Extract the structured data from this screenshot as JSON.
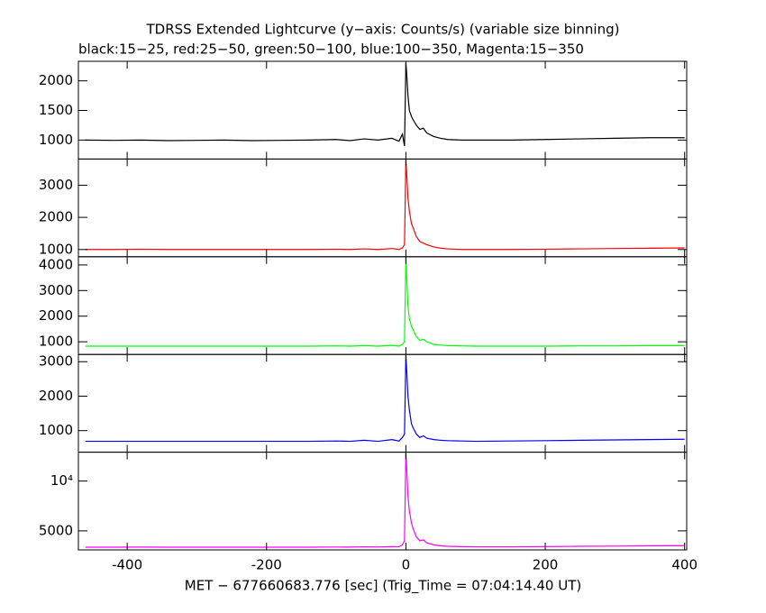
{
  "chart_data": [
    {
      "type": "line",
      "title": "TDRSS Extended Lightcurve (y−axis: Counts/s) (variable size binning)",
      "subtitle": "black:15−25, red:25−50, green:50−100, blue:100−350, Magenta:15−350",
      "color": "#000000",
      "xlim": [
        -470,
        403
      ],
      "ylim": [
        680,
        2330
      ],
      "yticks": [
        1000,
        1500,
        2000
      ],
      "x": [
        -460,
        -420,
        -380,
        -340,
        -300,
        -260,
        -220,
        -180,
        -140,
        -100,
        -80,
        -60,
        -40,
        -20,
        -10,
        -5,
        -2,
        0,
        1,
        2,
        3,
        5,
        8,
        10,
        15,
        20,
        25,
        30,
        40,
        50,
        60,
        80,
        100,
        150,
        200,
        250,
        300,
        350,
        400
      ],
      "values": [
        1000,
        995,
        1000,
        990,
        995,
        1000,
        990,
        995,
        1000,
        1010,
        990,
        1020,
        1000,
        1030,
        980,
        1100,
        900,
        2300,
        2150,
        1950,
        1750,
        1500,
        1400,
        1350,
        1250,
        1180,
        1200,
        1120,
        1060,
        1030,
        1010,
        1000,
        1000,
        1000,
        1010,
        1020,
        1030,
        1040,
        1040
      ]
    },
    {
      "type": "line",
      "color": "#ff0000",
      "xlim": [
        -470,
        403
      ],
      "ylim": [
        775,
        3815
      ],
      "yticks": [
        1000,
        2000,
        3000
      ],
      "x": [
        -460,
        -420,
        -380,
        -340,
        -300,
        -260,
        -220,
        -180,
        -140,
        -100,
        -80,
        -60,
        -40,
        -20,
        -10,
        -5,
        -2,
        0,
        1,
        2,
        3,
        5,
        8,
        10,
        15,
        20,
        25,
        30,
        40,
        50,
        60,
        80,
        100,
        150,
        200,
        250,
        300,
        350,
        400
      ],
      "values": [
        1000,
        1000,
        1010,
        1000,
        1000,
        1000,
        1000,
        1000,
        1000,
        1010,
        1000,
        1020,
        1000,
        1030,
        1000,
        1050,
        1150,
        3800,
        3400,
        3000,
        2600,
        2200,
        1800,
        1700,
        1400,
        1250,
        1200,
        1150,
        1080,
        1040,
        1020,
        1000,
        1000,
        1000,
        1010,
        1020,
        1030,
        1040,
        1050
      ]
    },
    {
      "type": "line",
      "color": "#00ff00",
      "xlim": [
        -470,
        403
      ],
      "ylim": [
        505,
        4320
      ],
      "yticks": [
        1000,
        2000,
        3000,
        4000
      ],
      "x": [
        -460,
        -420,
        -380,
        -340,
        -300,
        -260,
        -220,
        -180,
        -140,
        -100,
        -80,
        -60,
        -40,
        -20,
        -10,
        -5,
        -2,
        0,
        1,
        2,
        3,
        5,
        8,
        10,
        15,
        20,
        25,
        30,
        40,
        50,
        60,
        80,
        100,
        150,
        200,
        250,
        300,
        350,
        400
      ],
      "values": [
        830,
        830,
        830,
        830,
        830,
        830,
        830,
        830,
        830,
        840,
        830,
        850,
        830,
        860,
        830,
        900,
        1000,
        4300,
        3600,
        3000,
        2400,
        1900,
        1600,
        1500,
        1200,
        1050,
        1100,
        1000,
        900,
        870,
        850,
        840,
        830,
        830,
        830,
        840,
        840,
        850,
        850
      ]
    },
    {
      "type": "line",
      "color": "#0000ff",
      "xlim": [
        -470,
        403
      ],
      "ylim": [
        375,
        3210
      ],
      "yticks": [
        1000,
        2000,
        3000
      ],
      "x": [
        -460,
        -420,
        -380,
        -340,
        -300,
        -260,
        -220,
        -180,
        -140,
        -100,
        -80,
        -60,
        -40,
        -20,
        -10,
        -5,
        -2,
        0,
        1,
        2,
        3,
        5,
        8,
        10,
        15,
        20,
        25,
        30,
        40,
        50,
        60,
        80,
        100,
        150,
        200,
        250,
        300,
        350,
        400
      ],
      "values": [
        690,
        690,
        690,
        690,
        690,
        690,
        690,
        690,
        690,
        700,
        690,
        720,
        690,
        740,
        700,
        800,
        900,
        3200,
        2800,
        2400,
        2000,
        1600,
        1200,
        1100,
        900,
        800,
        850,
        780,
        740,
        720,
        710,
        700,
        690,
        700,
        710,
        720,
        730,
        740,
        750
      ]
    },
    {
      "type": "line",
      "color": "#ff00ff",
      "xlim": [
        -470,
        403
      ],
      "ylim": [
        3090,
        12900
      ],
      "yticks": [
        5000,
        {
          "value": 10000,
          "label": "10⁴"
        }
      ],
      "xticks": [
        -400,
        -200,
        0,
        200,
        400
      ],
      "x_label": "MET − 677660683.776 [sec] (Trig_Time = 07:04:14.40 UT)",
      "x": [
        -460,
        -420,
        -380,
        -340,
        -300,
        -260,
        -220,
        -180,
        -140,
        -100,
        -80,
        -60,
        -40,
        -20,
        -10,
        -5,
        -2,
        0,
        1,
        2,
        3,
        5,
        8,
        10,
        15,
        20,
        25,
        30,
        40,
        50,
        60,
        80,
        100,
        150,
        200,
        250,
        300,
        350,
        400
      ],
      "values": [
        3360,
        3360,
        3370,
        3360,
        3360,
        3360,
        3360,
        3360,
        3360,
        3380,
        3370,
        3400,
        3380,
        3420,
        3400,
        3600,
        4000,
        12900,
        11500,
        10000,
        8500,
        7000,
        5800,
        5300,
        4400,
        4000,
        4100,
        3800,
        3600,
        3500,
        3450,
        3420,
        3400,
        3400,
        3420,
        3450,
        3470,
        3500,
        3520
      ]
    }
  ]
}
